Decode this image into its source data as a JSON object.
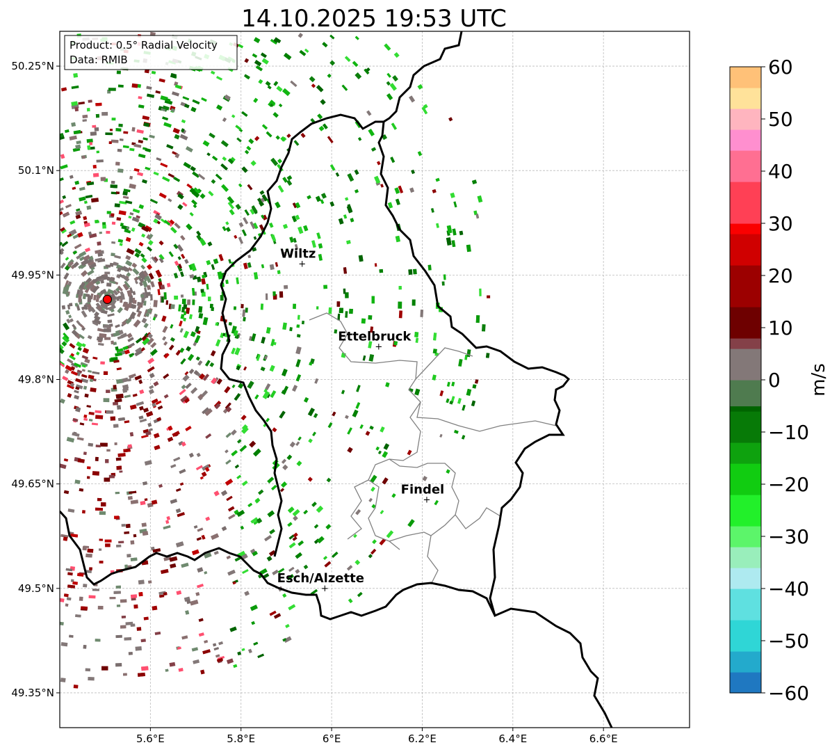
{
  "title": "14.10.2025 19:53 UTC",
  "info_box": {
    "product": "Product: 0.5° Radial Velocity",
    "data": "Data: RMIB"
  },
  "map": {
    "lon_range": [
      5.4,
      6.79
    ],
    "lat_range": [
      49.3,
      50.3
    ],
    "lon_ticks": [
      {
        "value": 5.6,
        "label": "5.6°E"
      },
      {
        "value": 5.8,
        "label": "5.8°E"
      },
      {
        "value": 6.0,
        "label": "6°E"
      },
      {
        "value": 6.2,
        "label": "6.2°E"
      },
      {
        "value": 6.4,
        "label": "6.4°E"
      },
      {
        "value": 6.6,
        "label": "6.6°E"
      }
    ],
    "lat_ticks": [
      {
        "value": 50.25,
        "label": "50.25°N"
      },
      {
        "value": 50.1,
        "label": "50.1°N"
      },
      {
        "value": 49.95,
        "label": "49.95°N"
      },
      {
        "value": 49.8,
        "label": "49.8°N"
      },
      {
        "value": 49.65,
        "label": "49.65°N"
      },
      {
        "value": 49.5,
        "label": "49.5°N"
      },
      {
        "value": 49.35,
        "label": "49.35°N"
      }
    ],
    "radar_site": {
      "lon": 5.505,
      "lat": 49.915,
      "color": "#ff0000"
    },
    "cities": [
      {
        "name": "Wiltz",
        "lon": 5.935,
        "lat": 49.966
      },
      {
        "name": "Ettelbruck",
        "lon": 6.104,
        "lat": 49.847
      },
      {
        "name": "Findel",
        "lon": 6.21,
        "lat": 49.627
      },
      {
        "name": "Esch/Alzette",
        "lon": 5.985,
        "lat": 49.5
      }
    ],
    "border_color": "#000000",
    "canton_color": "#808080",
    "grid": true
  },
  "colorbar": {
    "label": "m/s",
    "min": -60,
    "max": 60,
    "ticks": [
      {
        "value": 60,
        "label": "60"
      },
      {
        "value": 50,
        "label": "50"
      },
      {
        "value": 40,
        "label": "40"
      },
      {
        "value": 30,
        "label": "30"
      },
      {
        "value": 20,
        "label": "20"
      },
      {
        "value": 10,
        "label": "10"
      },
      {
        "value": 0,
        "label": "0"
      },
      {
        "value": -10,
        "label": "−10"
      },
      {
        "value": -20,
        "label": "−20"
      },
      {
        "value": -30,
        "label": "−30"
      },
      {
        "value": -40,
        "label": "−40"
      },
      {
        "value": -50,
        "label": "−50"
      },
      {
        "value": -60,
        "label": "−60"
      }
    ],
    "stops": [
      {
        "v": -60,
        "c": "#1f78c1"
      },
      {
        "v": -56,
        "c": "#23aacc"
      },
      {
        "v": -52,
        "c": "#2fd6d6"
      },
      {
        "v": -46,
        "c": "#5fe0e0"
      },
      {
        "v": -40,
        "c": "#aeeaf0"
      },
      {
        "v": -36,
        "c": "#99eebb"
      },
      {
        "v": -32,
        "c": "#5cf56a"
      },
      {
        "v": -28,
        "c": "#22f02a"
      },
      {
        "v": -22,
        "c": "#11cc11"
      },
      {
        "v": -16,
        "c": "#0ea20e"
      },
      {
        "v": -12,
        "c": "#077a07"
      },
      {
        "v": -6,
        "c": "#006400"
      },
      {
        "v": -5,
        "c": "#4f7b4f"
      },
      {
        "v": 0,
        "c": "#837878"
      },
      {
        "v": 6,
        "c": "#844048"
      },
      {
        "v": 8,
        "c": "#6e0000"
      },
      {
        "v": 14,
        "c": "#9c0000"
      },
      {
        "v": 22,
        "c": "#d00000"
      },
      {
        "v": 28,
        "c": "#fa0000"
      },
      {
        "v": 30,
        "c": "#ff4055"
      },
      {
        "v": 38,
        "c": "#ff6f92"
      },
      {
        "v": 44,
        "c": "#ff8fcf"
      },
      {
        "v": 48,
        "c": "#ffb5bf"
      },
      {
        "v": 52,
        "c": "#ffe29a"
      },
      {
        "v": 56,
        "c": "#ffc178"
      },
      {
        "v": 60,
        "c": "#ff9a50"
      }
    ]
  }
}
